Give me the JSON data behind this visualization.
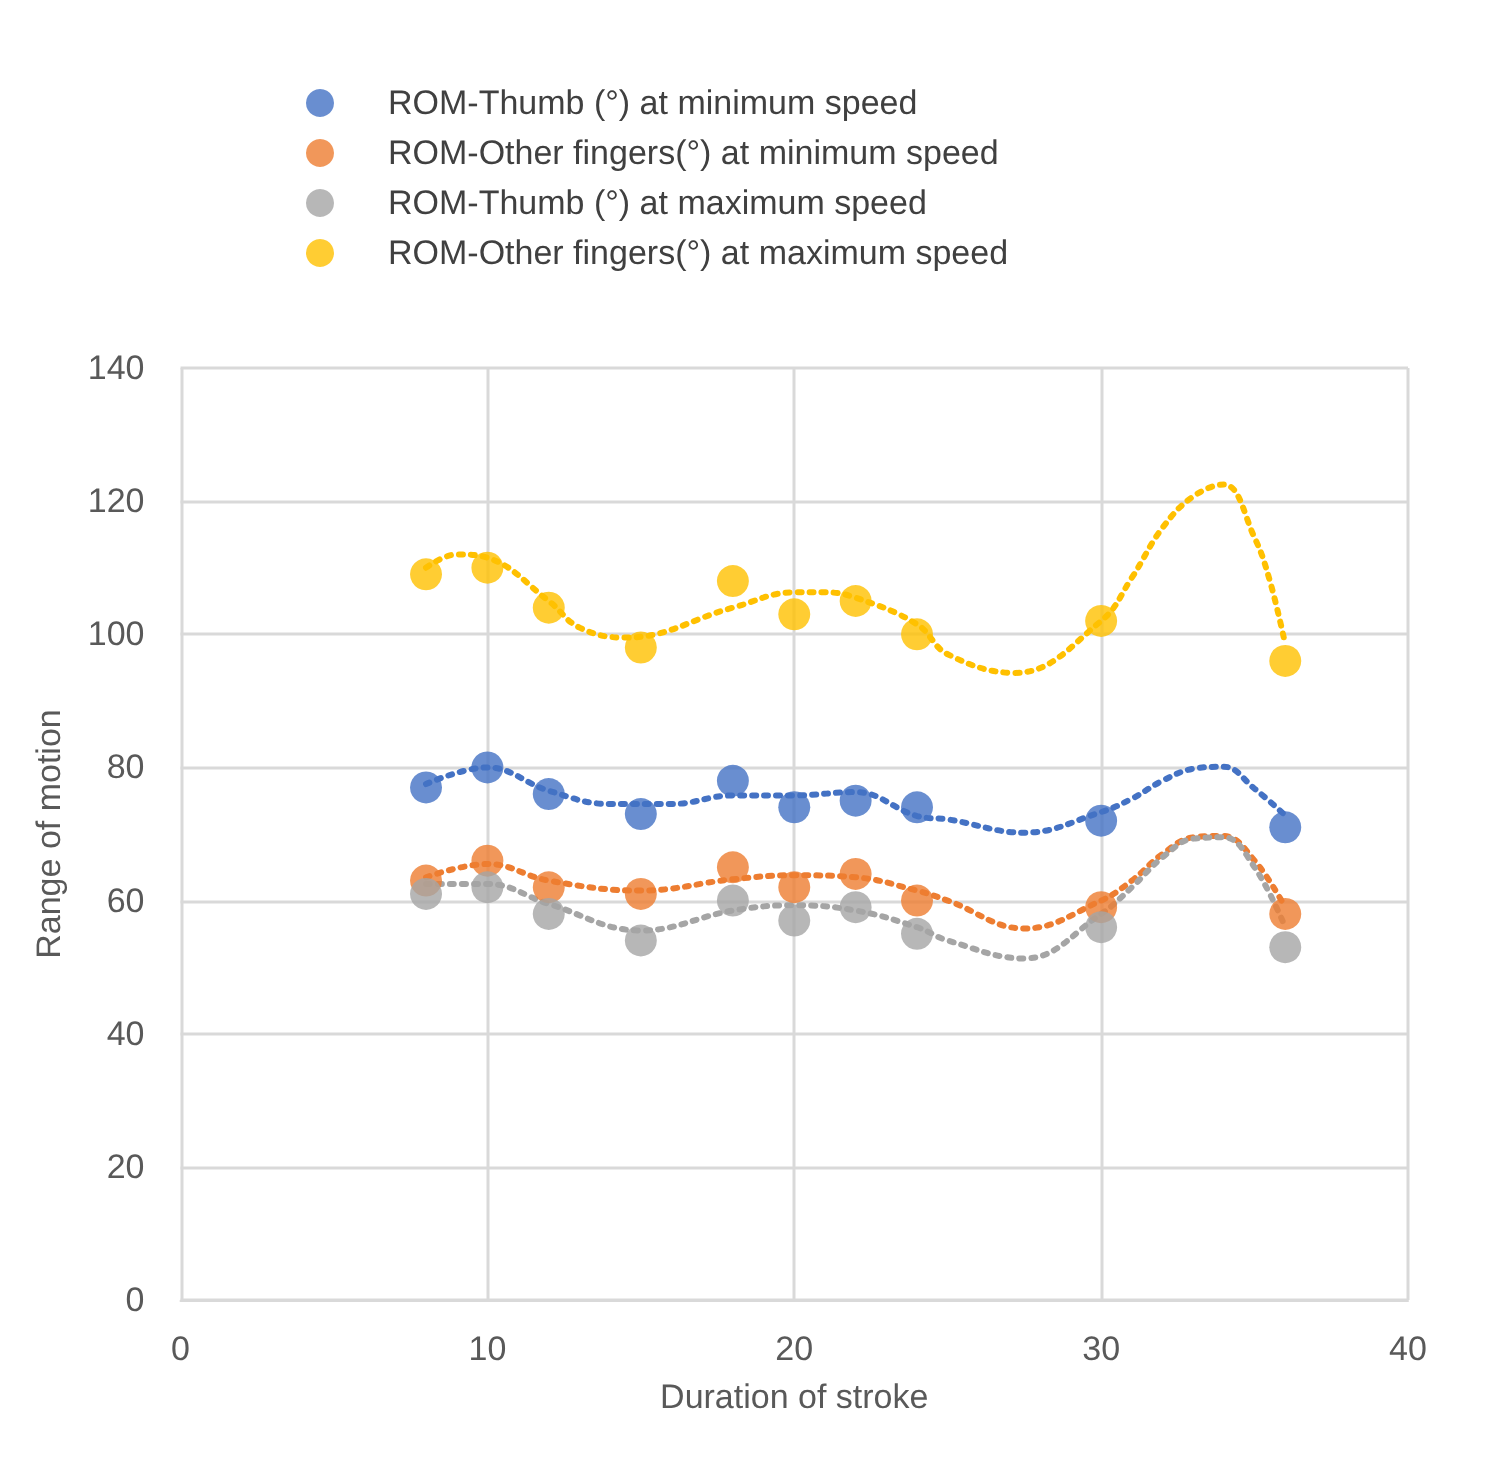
{
  "chart_data": {
    "type": "scatter",
    "xlabel": "Duration of stroke",
    "ylabel": "Range of motion",
    "x": [
      8,
      10,
      12,
      15,
      18,
      20,
      22,
      24,
      30,
      36
    ],
    "xlim": [
      0,
      40
    ],
    "xticks": [
      0,
      10,
      20,
      30,
      40
    ],
    "ylim": [
      0,
      140
    ],
    "yticks": [
      0,
      20,
      40,
      60,
      80,
      100,
      120,
      140
    ],
    "grid": true,
    "legend": "top",
    "marker": "circle",
    "series": [
      {
        "name": "ROM-Thumb (°) at minimum speed",
        "color": "#4472c4",
        "values": [
          77,
          80,
          76,
          73,
          78,
          74,
          75,
          74,
          72,
          71
        ]
      },
      {
        "name": "ROM-Other fingers(°) at minimum speed",
        "color": "#ed7d31",
        "values": [
          63,
          66,
          62,
          61,
          65,
          62,
          64,
          60,
          59,
          58
        ]
      },
      {
        "name": "ROM-Thumb (°) at maximum speed",
        "color": "#a5a5a5",
        "values": [
          61,
          62,
          58,
          54,
          60,
          57,
          59,
          55,
          56,
          53
        ]
      },
      {
        "name": "ROM-Other fingers(°) at maximum speed",
        "color": "#ffc000",
        "values": [
          109,
          110,
          104,
          98,
          108,
          103,
          105,
          100,
          102,
          96
        ]
      },
      {
        "type": "line",
        "color": "#4472c4",
        "line_style": "dotted",
        "marker": "none",
        "x": [
          8,
          10,
          12,
          14,
          16,
          18,
          20,
          22,
          24,
          25,
          27.5,
          30,
          31,
          32,
          33,
          34,
          35,
          36
        ],
        "values": [
          77.5,
          80,
          76.5,
          74.5,
          74.5,
          75.8,
          75.8,
          76.3,
          72.7,
          72.2,
          70.2,
          73.3,
          75.3,
          78,
          79.8,
          80.1,
          76.8,
          72.8
        ]
      },
      {
        "type": "line",
        "color": "#ed7d31",
        "line_style": "dotted",
        "marker": "none",
        "x": [
          8,
          10,
          12,
          15,
          18,
          20,
          22,
          24,
          25,
          27.5,
          30,
          31,
          32,
          33,
          34,
          35,
          36
        ],
        "values": [
          63.5,
          65.5,
          63,
          61.5,
          63.2,
          63.8,
          63.5,
          61.5,
          60,
          55.8,
          60,
          63,
          67,
          69.5,
          69.7,
          66,
          59
        ]
      },
      {
        "type": "line",
        "color": "#a5a5a5",
        "line_style": "dotted",
        "marker": "none",
        "x": [
          8,
          10,
          12,
          15,
          18,
          20,
          22,
          24,
          25,
          27.5,
          30,
          31,
          32,
          33,
          34,
          35,
          36
        ],
        "values": [
          62.5,
          62.5,
          59.5,
          55.5,
          58.5,
          59.3,
          58.5,
          56,
          54,
          51.3,
          58,
          62,
          66.5,
          69.3,
          69.5,
          65,
          56
        ]
      },
      {
        "type": "line",
        "color": "#ffc000",
        "line_style": "dotted",
        "marker": "none",
        "x": [
          8,
          9,
          10,
          12,
          13,
          14.5,
          18,
          20,
          21,
          22,
          24,
          25,
          27.2,
          30,
          31,
          32,
          33,
          34,
          35,
          35.5,
          36
        ],
        "values": [
          110,
          112,
          111.5,
          105,
          101,
          99.5,
          104,
          106.3,
          106.3,
          105.5,
          101.5,
          97,
          94.2,
          102,
          108.5,
          116,
          120.7,
          122.5,
          114.5,
          108,
          98.5
        ]
      }
    ]
  }
}
